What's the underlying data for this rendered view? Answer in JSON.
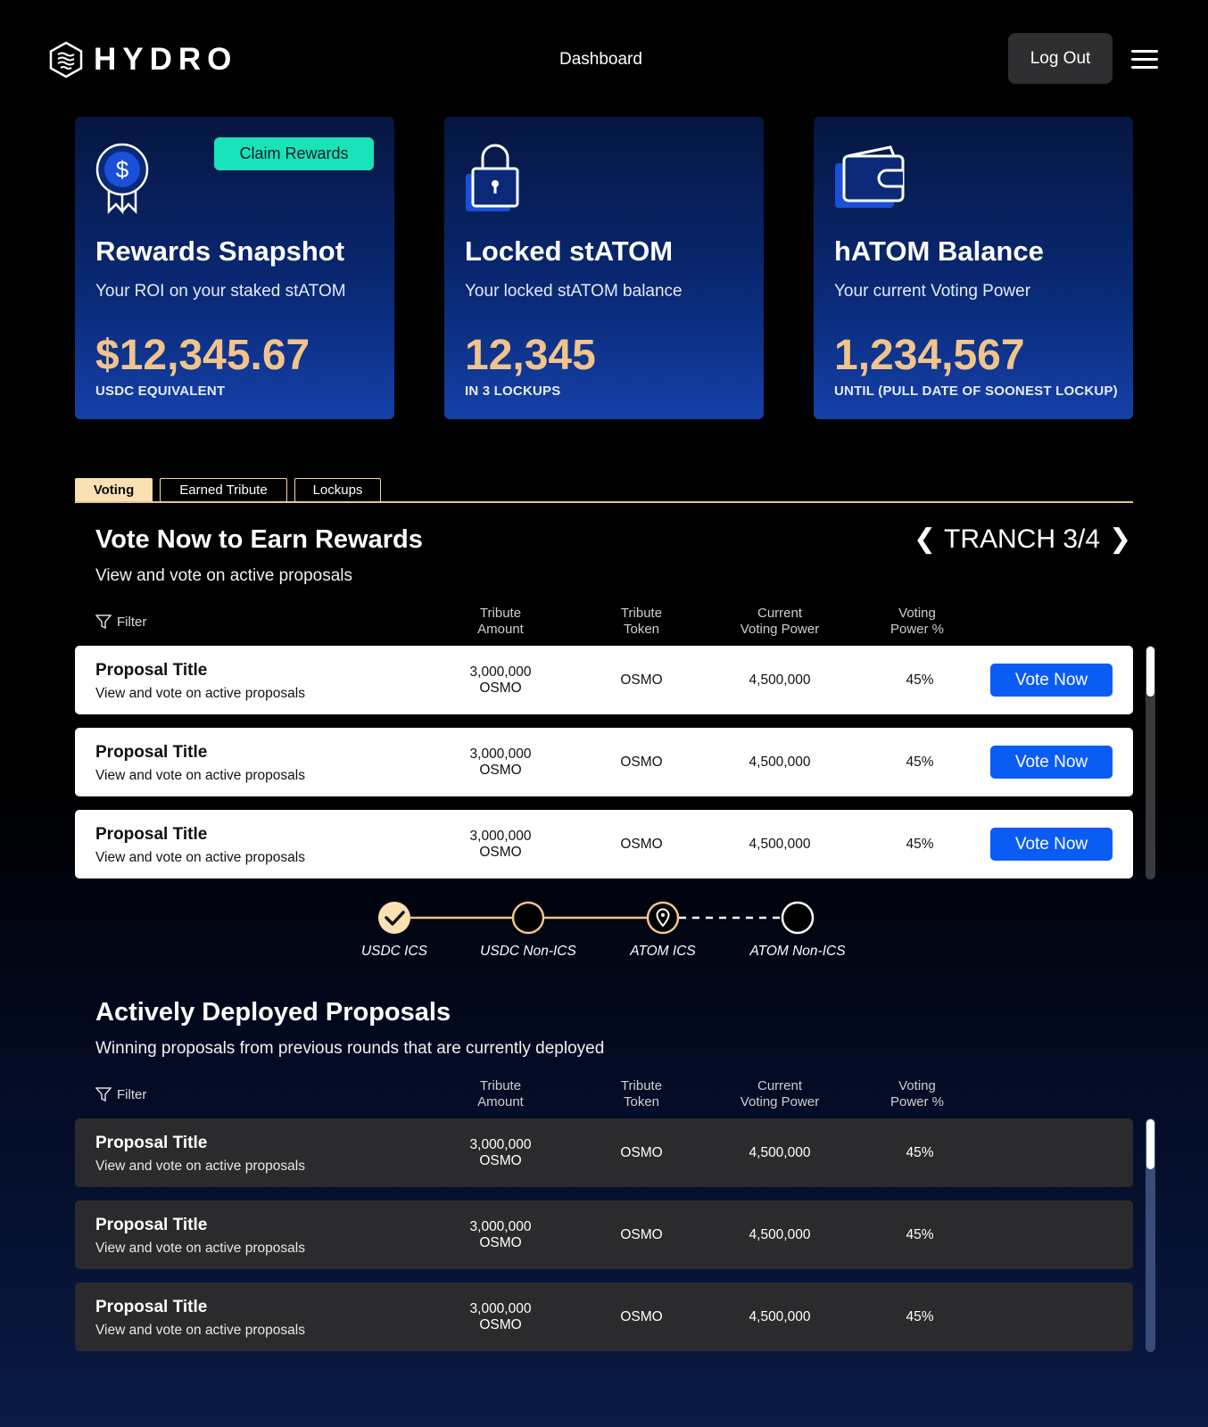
{
  "header": {
    "logo_text": "HYDRO",
    "nav_dashboard": "Dashboard",
    "logout_label": "Log Out"
  },
  "cards": [
    {
      "title": "Rewards Snapshot",
      "subtitle": "Your ROI on your staked stATOM",
      "value": "$12,345.67",
      "note": "USDC EQUIVALENT",
      "button": "Claim Rewards"
    },
    {
      "title": "Locked stATOM",
      "subtitle": "Your locked stATOM balance",
      "value": "12,345",
      "note": "IN 3 LOCKUPS"
    },
    {
      "title": "hATOM Balance",
      "subtitle": "Your current Voting Power",
      "value": "1,234,567",
      "note": "UNTIL (PULL DATE OF SOONEST LOCKUP)"
    }
  ],
  "tabs": [
    "Voting",
    "Earned Tribute",
    "Lockups"
  ],
  "voting": {
    "title": "Vote Now to Earn Rewards",
    "subtitle": "View and vote on active proposals",
    "tranch_label": "TRANCH 3/4",
    "filter_label": "Filter",
    "columns": [
      [
        "Tribute",
        "Amount"
      ],
      [
        "Tribute",
        "Token"
      ],
      [
        "Current",
        "Voting Power"
      ],
      [
        "Voting",
        "Power %"
      ]
    ],
    "vote_label": "Vote Now",
    "rows": [
      {
        "title": "Proposal Title",
        "desc": "View and vote on active proposals",
        "amount_1": "3,000,000",
        "amount_2": "OSMO",
        "token": "OSMO",
        "power": "4,500,000",
        "percent": "45%"
      },
      {
        "title": "Proposal Title",
        "desc": "View and vote on active proposals",
        "amount_1": "3,000,000",
        "amount_2": "OSMO",
        "token": "OSMO",
        "power": "4,500,000",
        "percent": "45%"
      },
      {
        "title": "Proposal Title",
        "desc": "View and vote on active proposals",
        "amount_1": "3,000,000",
        "amount_2": "OSMO",
        "token": "OSMO",
        "power": "4,500,000",
        "percent": "45%"
      }
    ]
  },
  "steps": [
    {
      "label": "USDC ICS",
      "state": "complete"
    },
    {
      "label": "USDC Non-ICS",
      "state": "complete"
    },
    {
      "label": "ATOM ICS",
      "state": "current"
    },
    {
      "label": "ATOM Non-ICS",
      "state": "upcoming"
    }
  ],
  "deployed": {
    "title": "Actively Deployed Proposals",
    "subtitle": "Winning proposals from previous rounds that are currently deployed",
    "filter_label": "Filter",
    "columns": [
      [
        "Tribute",
        "Amount"
      ],
      [
        "Tribute",
        "Token"
      ],
      [
        "Current",
        "Voting Power"
      ],
      [
        "Voting",
        "Power %"
      ]
    ],
    "rows": [
      {
        "title": "Proposal Title",
        "desc": "View and vote on active proposals",
        "amount_1": "3,000,000",
        "amount_2": "OSMO",
        "token": "OSMO",
        "power": "4,500,000",
        "percent": "45%"
      },
      {
        "title": "Proposal Title",
        "desc": "View and vote on active proposals",
        "amount_1": "3,000,000",
        "amount_2": "OSMO",
        "token": "OSMO",
        "power": "4,500,000",
        "percent": "45%"
      },
      {
        "title": "Proposal Title",
        "desc": "View and vote on active proposals",
        "amount_1": "3,000,000",
        "amount_2": "OSMO",
        "token": "OSMO",
        "power": "4,500,000",
        "percent": "45%"
      }
    ]
  },
  "colors": {
    "accent_gold": "#f2c48a",
    "claim_green": "#19e3b8",
    "vote_blue": "#0a5cf5",
    "card_blue": "#0a2a78"
  }
}
